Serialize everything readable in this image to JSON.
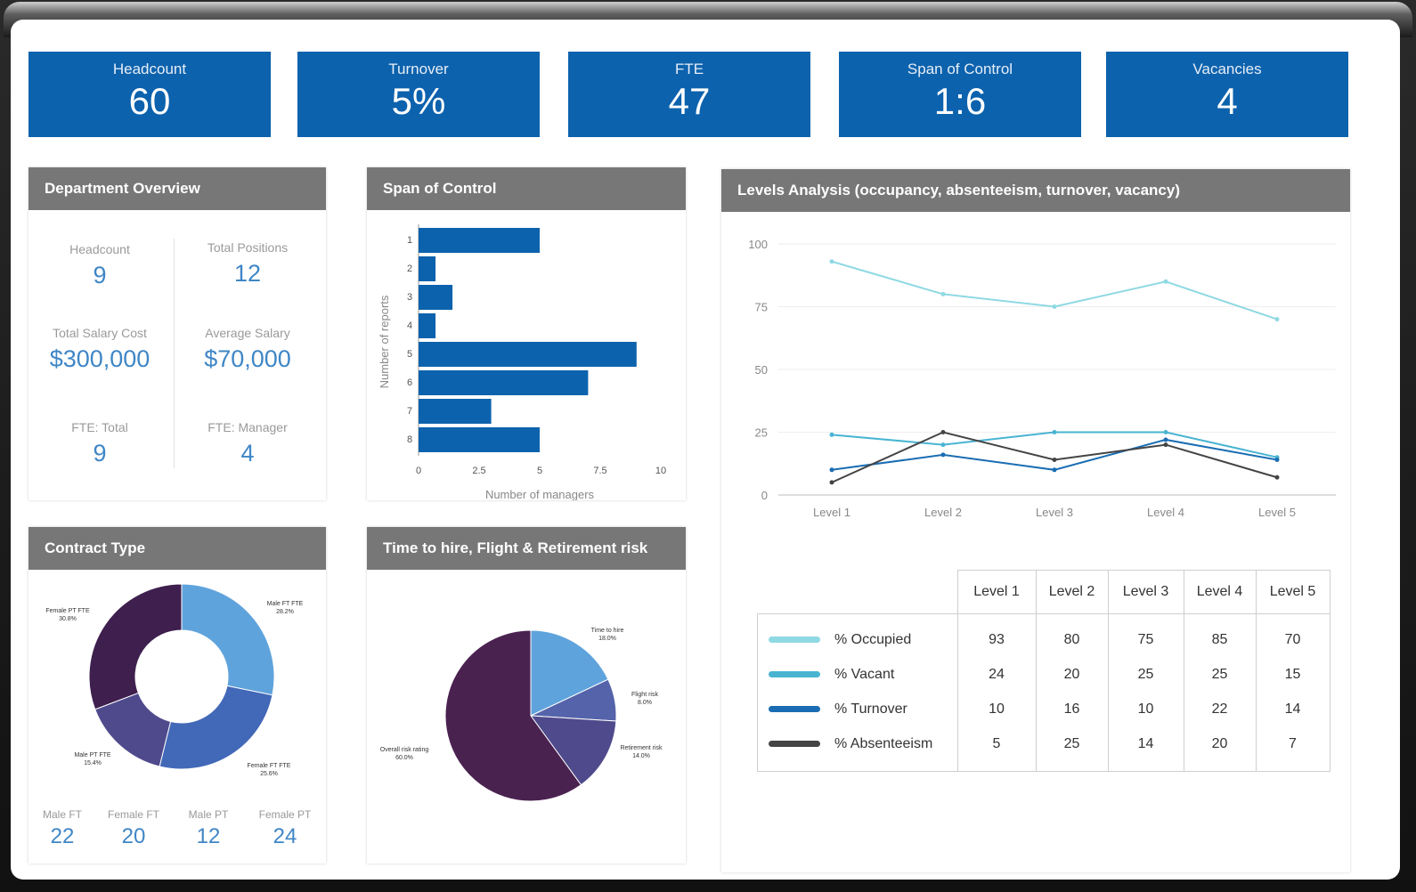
{
  "kpis": [
    {
      "label": "Headcount",
      "value": "60"
    },
    {
      "label": "Turnover",
      "value": "5%"
    },
    {
      "label": "FTE",
      "value": "47"
    },
    {
      "label": "Span of Control",
      "value": "1:6"
    },
    {
      "label": "Vacancies",
      "value": "4"
    }
  ],
  "department": {
    "title": "Department Overview",
    "headcount_label": "Headcount",
    "headcount": "9",
    "positions_label": "Total Positions",
    "positions": "12",
    "salary_cost_label": "Total Salary Cost",
    "salary_cost": "$300,000",
    "avg_salary_label": "Average Salary",
    "avg_salary": "$70,000",
    "fte_total_label": "FTE: Total",
    "fte_total": "9",
    "fte_manager_label": "FTE: Manager",
    "fte_manager": "4"
  },
  "span": {
    "title": "Span of Control",
    "chart_data": {
      "type": "bar",
      "orientation": "horizontal",
      "categories": [
        "1",
        "2",
        "3",
        "4",
        "5",
        "6",
        "7",
        "8"
      ],
      "values": [
        5,
        0.7,
        1.4,
        0.7,
        9,
        7,
        3,
        5
      ],
      "xlabel": "Number of managers",
      "ylabel": "Number of reports",
      "xticks": [
        "0",
        "2.5",
        "5",
        "7.5",
        "10"
      ],
      "xlim": [
        0,
        10
      ]
    }
  },
  "levels": {
    "title": "Levels Analysis (occupancy, absenteeism, turnover, vacancy)",
    "chart_data": {
      "type": "line",
      "categories": [
        "Level 1",
        "Level 2",
        "Level 3",
        "Level 4",
        "Level 5"
      ],
      "yticks": [
        "0",
        "25",
        "50",
        "75",
        "100"
      ],
      "ylim": [
        0,
        100
      ],
      "series": [
        {
          "name": "% Occupied",
          "color": "#8fd9e3",
          "values": [
            93,
            80,
            75,
            85,
            70
          ]
        },
        {
          "name": "% Vacant",
          "color": "#49b4d2",
          "values": [
            24,
            20,
            25,
            25,
            15
          ]
        },
        {
          "name": "% Turnover",
          "color": "#1a6db3",
          "values": [
            10,
            16,
            10,
            22,
            14
          ]
        },
        {
          "name": "% Absenteeism",
          "color": "#444444",
          "values": [
            5,
            25,
            14,
            20,
            7
          ]
        }
      ]
    }
  },
  "contract": {
    "title": "Contract Type",
    "chart_data": {
      "type": "pie",
      "donut": true,
      "labels": [
        "Male FT FTE",
        "Female FT FTE",
        "Male PT FTE",
        "Female PT FTE"
      ],
      "values": [
        22,
        20,
        12,
        24
      ],
      "colors": [
        "#5fa3dc",
        "#4268b8",
        "#4f4a8c",
        "#3e1f4e"
      ]
    },
    "stats": [
      {
        "label": "Male FT",
        "value": "22"
      },
      {
        "label": "Female FT",
        "value": "20"
      },
      {
        "label": "Male PT",
        "value": "12"
      },
      {
        "label": "Female PT",
        "value": "24"
      }
    ]
  },
  "risk": {
    "title": "Time to hire, Flight & Retirement risk",
    "chart_data": {
      "type": "pie",
      "labels": [
        "Time to hire",
        "Flight risk",
        "Retirement risk",
        "Overall risk rating"
      ],
      "values": [
        18,
        8,
        14,
        60
      ],
      "colors": [
        "#5fa3dc",
        "#5563aa",
        "#4f4a8c",
        "#4a2250"
      ]
    }
  }
}
